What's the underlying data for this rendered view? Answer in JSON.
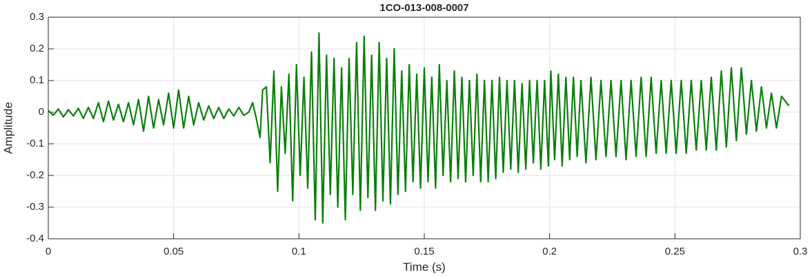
{
  "chart_data": {
    "type": "line",
    "title": "1CO-013-008-0007",
    "x_label": "Time (s)",
    "y_label": "Amplitude",
    "color": "#0a800a",
    "grid": true,
    "xlim": [
      0,
      0.3
    ],
    "xticks": [
      0,
      0.05,
      0.1,
      0.15,
      0.2,
      0.25,
      0.3
    ],
    "ylim": [
      -0.4,
      0.3
    ],
    "yticks": [
      -0.4,
      -0.3,
      -0.2,
      -0.1,
      0,
      0.1,
      0.2,
      0.3
    ],
    "x": [
      0,
      0.002,
      0.004,
      0.006,
      0.008,
      0.01,
      0.012,
      0.014,
      0.016,
      0.018,
      0.02,
      0.022,
      0.024,
      0.026,
      0.028,
      0.03,
      0.032,
      0.034,
      0.036,
      0.038,
      0.04,
      0.042,
      0.044,
      0.046,
      0.048,
      0.05,
      0.052,
      0.054,
      0.056,
      0.058,
      0.06,
      0.062,
      0.064,
      0.066,
      0.068,
      0.07,
      0.072,
      0.074,
      0.076,
      0.078,
      0.08,
      0.0815,
      0.083,
      0.0845,
      0.0855,
      0.087,
      0.0885,
      0.09,
      0.0915,
      0.093,
      0.0945,
      0.096,
      0.0975,
      0.099,
      0.1005,
      0.102,
      0.1035,
      0.105,
      0.1065,
      0.108,
      0.1095,
      0.111,
      0.1125,
      0.114,
      0.1155,
      0.117,
      0.1185,
      0.12,
      0.1215,
      0.123,
      0.1245,
      0.126,
      0.1275,
      0.129,
      0.1305,
      0.132,
      0.1335,
      0.135,
      0.1365,
      0.138,
      0.1395,
      0.141,
      0.1425,
      0.144,
      0.1455,
      0.147,
      0.1485,
      0.15,
      0.1515,
      0.153,
      0.1545,
      0.156,
      0.1575,
      0.159,
      0.1605,
      0.162,
      0.1635,
      0.165,
      0.1665,
      0.168,
      0.1695,
      0.171,
      0.1725,
      0.174,
      0.1755,
      0.177,
      0.1785,
      0.18,
      0.1815,
      0.183,
      0.1845,
      0.186,
      0.1875,
      0.189,
      0.1905,
      0.192,
      0.1935,
      0.195,
      0.1965,
      0.198,
      0.1995,
      0.2005,
      0.202,
      0.2035,
      0.205,
      0.2065,
      0.208,
      0.2095,
      0.211,
      0.2125,
      0.2145,
      0.2165,
      0.2185,
      0.2205,
      0.2225,
      0.2245,
      0.2265,
      0.2285,
      0.2305,
      0.2325,
      0.2345,
      0.2365,
      0.2385,
      0.2405,
      0.2425,
      0.2445,
      0.2465,
      0.2485,
      0.2505,
      0.2525,
      0.2545,
      0.2565,
      0.2585,
      0.2605,
      0.2625,
      0.2645,
      0.2665,
      0.2685,
      0.2705,
      0.2725,
      0.2745,
      0.2765,
      0.2785,
      0.2805,
      0.2825,
      0.2845,
      0.2865,
      0.2885,
      0.2905,
      0.2925,
      0.2945,
      0.2955
    ],
    "values": [
      0.005,
      -0.01,
      0.01,
      -0.015,
      0.008,
      -0.012,
      0.012,
      -0.02,
      0.015,
      -0.02,
      0.03,
      -0.03,
      0.035,
      -0.025,
      0.025,
      -0.03,
      0.03,
      -0.04,
      0.04,
      -0.06,
      0.05,
      -0.05,
      0.04,
      -0.04,
      0.06,
      -0.05,
      0.07,
      -0.05,
      0.05,
      -0.04,
      0.03,
      -0.025,
      0.02,
      -0.02,
      0.015,
      -0.02,
      0.01,
      -0.012,
      0.015,
      -0.01,
      0.0,
      0.03,
      -0.02,
      -0.08,
      0.07,
      0.08,
      -0.16,
      0.13,
      -0.25,
      0.08,
      -0.13,
      0.12,
      -0.28,
      0.15,
      -0.2,
      0.11,
      -0.24,
      0.19,
      -0.34,
      0.25,
      -0.35,
      0.18,
      -0.26,
      0.17,
      -0.3,
      0.14,
      -0.34,
      0.17,
      -0.26,
      0.22,
      -0.31,
      0.24,
      -0.27,
      0.18,
      -0.31,
      0.22,
      -0.28,
      0.17,
      -0.29,
      0.2,
      -0.26,
      0.13,
      -0.25,
      0.15,
      -0.22,
      0.12,
      -0.24,
      0.14,
      -0.22,
      0.11,
      -0.24,
      0.15,
      -0.2,
      0.1,
      -0.22,
      0.13,
      -0.21,
      0.11,
      -0.22,
      0.1,
      -0.2,
      0.12,
      -0.22,
      0.1,
      -0.22,
      0.1,
      -0.21,
      0.11,
      -0.19,
      0.1,
      -0.18,
      0.1,
      -0.19,
      0.09,
      -0.18,
      0.1,
      -0.16,
      0.1,
      -0.18,
      0.1,
      -0.17,
      0.13,
      -0.15,
      0.12,
      -0.17,
      0.11,
      -0.15,
      0.11,
      -0.14,
      0.1,
      -0.16,
      0.11,
      -0.15,
      0.1,
      -0.14,
      0.1,
      -0.14,
      0.1,
      -0.15,
      0.1,
      -0.14,
      0.11,
      -0.14,
      0.11,
      -0.13,
      0.1,
      -0.13,
      0.1,
      -0.13,
      0.1,
      -0.13,
      0.1,
      -0.12,
      0.1,
      -0.12,
      0.11,
      -0.12,
      0.13,
      -0.11,
      0.14,
      -0.09,
      0.14,
      -0.07,
      0.1,
      -0.06,
      0.08,
      -0.05,
      0.06,
      -0.05,
      0.05,
      0.03,
      0.02
    ]
  }
}
